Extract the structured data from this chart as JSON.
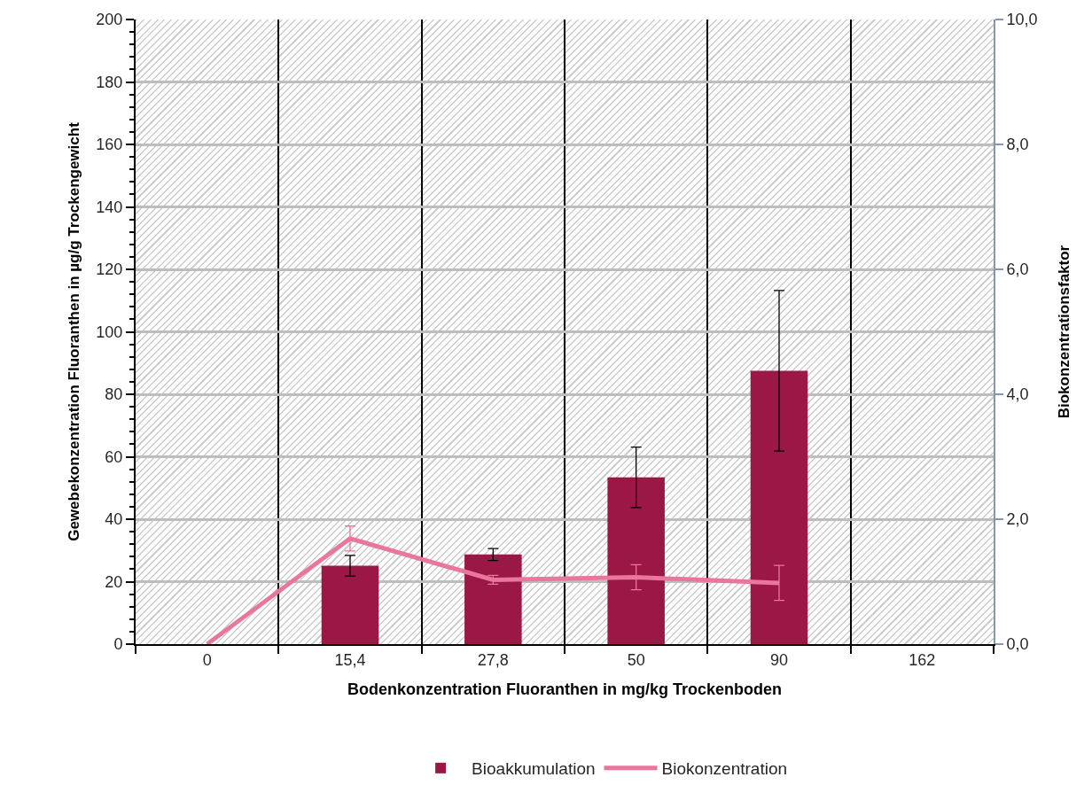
{
  "chart_data": {
    "type": "bar",
    "xlabel": "Bodenkonzentration Fluoranthen in mg/kg Trockenboden",
    "ylabel": "Gewebekonzentration Fluoranthen in µg/g Trockengewicht",
    "y2label": "Biokonzentrationsfaktor",
    "categories": [
      "0",
      "15,4",
      "27,8",
      "50",
      "90",
      "162"
    ],
    "series": [
      {
        "name": "Bioakkumulation",
        "color": "#9b1746",
        "values": [
          null,
          25.1,
          28.7,
          53.4,
          87.5,
          null
        ],
        "errors": [
          null,
          3.3,
          1.9,
          9.7,
          25.7,
          null
        ]
      },
      {
        "name": "Biokonzentration",
        "type": "line",
        "axis": "y2",
        "color": "#e8769d",
        "values": [
          0,
          1.69,
          1.03,
          1.07,
          0.98,
          null
        ],
        "errors": [
          null,
          0.2,
          0.07,
          0.2,
          0.28,
          null
        ]
      }
    ],
    "ylim": [
      0,
      200
    ],
    "yticks": [
      0,
      {
        "value": 4,
        "label": null
      },
      {
        "value": 8,
        "label": null
      },
      {
        "value": 12,
        "label": null
      },
      {
        "value": 16,
        "label": null
      },
      20,
      {
        "value": 24,
        "label": null
      },
      {
        "value": 28,
        "label": null
      },
      {
        "value": 32,
        "label": null
      },
      {
        "value": 36,
        "label": null
      },
      40,
      {
        "value": 44,
        "label": null
      },
      {
        "value": 48,
        "label": null
      },
      {
        "value": 52,
        "label": null
      },
      {
        "value": 56,
        "label": null
      },
      60,
      {
        "value": 64,
        "label": null
      },
      {
        "value": 68,
        "label": null
      },
      {
        "value": 72,
        "label": null
      },
      {
        "value": 76,
        "label": null
      },
      80,
      {
        "value": 84,
        "label": null
      },
      {
        "value": 88,
        "label": null
      },
      {
        "value": 92,
        "label": null
      },
      {
        "value": 96,
        "label": null
      },
      100,
      {
        "value": 104,
        "label": null
      },
      {
        "value": 108,
        "label": null
      },
      {
        "value": 112,
        "label": null
      },
      {
        "value": 116,
        "label": null
      },
      120,
      {
        "value": 124,
        "label": null
      },
      {
        "value": 128,
        "label": null
      },
      {
        "value": 132,
        "label": null
      },
      {
        "value": 136,
        "label": null
      },
      140,
      {
        "value": 144,
        "label": null
      },
      {
        "value": 148,
        "label": null
      },
      {
        "value": 152,
        "label": null
      },
      {
        "value": 156,
        "label": null
      },
      160,
      {
        "value": 164,
        "label": null
      },
      {
        "value": 168,
        "label": null
      },
      {
        "value": 172,
        "label": null
      },
      {
        "value": 176,
        "label": null
      },
      180,
      {
        "value": 184,
        "label": null
      },
      {
        "value": 188,
        "label": null
      },
      {
        "value": 192,
        "label": null
      },
      {
        "value": 196,
        "label": null
      },
      200
    ],
    "y2lim": [
      0,
      10
    ],
    "y2ticks": [
      {
        "value": 0,
        "label": "0,0"
      },
      {
        "value": 2,
        "label": "2,0"
      },
      {
        "value": 4,
        "label": "4,0"
      },
      {
        "value": 6,
        "label": "6,0"
      },
      {
        "value": 8,
        "label": "8,0"
      },
      {
        "value": 10,
        "label": "10,0"
      }
    ],
    "grid": true,
    "legend": "bottom"
  }
}
